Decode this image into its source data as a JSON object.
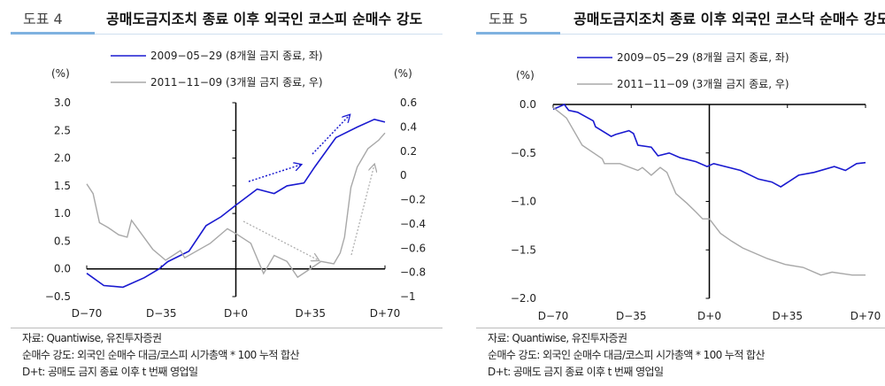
{
  "footnotes": [
    "자료: Quantiwise, 유진투자증권",
    "순매수 강도: 외국인 순매수 대금/코스피 시가총액 * 100 누적 합산",
    "D+t: 공매도 금지 종료 이후 t 번째 영업일"
  ],
  "chart_data": [
    {
      "type": "line",
      "figure_label": "도표 4",
      "title": "공매도금지조치 종료 이후 외국인 코스피 순매수 강도",
      "ylabel_left": "(%)",
      "ylabel_right": "(%)",
      "x_ticks": [
        "D−70",
        "D−35",
        "D+0",
        "D+35",
        "D+70"
      ],
      "xlim": [
        -70,
        70
      ],
      "y_left_ticks": [
        "3.0",
        "2.5",
        "2.0",
        "1.5",
        "1.0",
        "0.5",
        "0.0",
        "−0.5"
      ],
      "ylim_left": [
        -0.5,
        3.0
      ],
      "y_right_ticks": [
        "0.6",
        "0.4",
        "0.2",
        "0",
        "−0.2",
        "−0.4",
        "−0.6",
        "−0.8",
        "−1"
      ],
      "ylim_right": [
        -1,
        0.6
      ],
      "colors": {
        "s1": "#1a1ad0",
        "s2": "#a8a8a8"
      },
      "series": [
        {
          "name": "2009−05−29 (8개월 금지 종료, 좌)",
          "axis": "left",
          "x": [
            -70,
            -62,
            -53,
            -43,
            -36,
            -32,
            -22,
            -14,
            -7,
            0,
            10,
            18,
            24,
            32,
            37,
            47,
            57,
            65,
            70
          ],
          "y": [
            -0.08,
            -0.3,
            -0.33,
            -0.16,
            0,
            0.13,
            0.32,
            0.78,
            0.94,
            1.15,
            1.44,
            1.36,
            1.5,
            1.55,
            1.84,
            2.37,
            2.56,
            2.7,
            2.65
          ]
        },
        {
          "name": "2011−11−09 (3개월 금지 종료, 우)",
          "axis": "right",
          "x": [
            -70,
            -67,
            -64,
            -60,
            -55,
            -51,
            -49,
            -44,
            -39,
            -33,
            -26,
            -24,
            -12,
            -4,
            0,
            7,
            13,
            18,
            24,
            29,
            35,
            40,
            46,
            49,
            51,
            54,
            57,
            62,
            67,
            70
          ],
          "y": [
            -0.07,
            -0.15,
            -0.39,
            -0.43,
            -0.49,
            -0.51,
            -0.37,
            -0.49,
            -0.61,
            -0.7,
            -0.62,
            -0.68,
            -0.56,
            -0.44,
            -0.48,
            -0.56,
            -0.81,
            -0.66,
            -0.71,
            -0.84,
            -0.77,
            -0.71,
            -0.73,
            -0.64,
            -0.51,
            -0.1,
            0.07,
            0.22,
            0.29,
            0.35
          ]
        }
      ]
    },
    {
      "type": "line",
      "figure_label": "도표 5",
      "title": "공매도금지조치 종료 이후 외국인 코스닥 순매수 강도",
      "ylabel_left": "(%)",
      "x_ticks": [
        "D−70",
        "D−35",
        "D+0",
        "D+35",
        "D+70"
      ],
      "xlim": [
        -70,
        70
      ],
      "y_left_ticks": [
        "0.0",
        "−0.5",
        "−1.0",
        "−1.5",
        "−2.0"
      ],
      "ylim_left": [
        -2.0,
        0.0
      ],
      "colors": {
        "s1": "#1a1ad0",
        "s2": "#a8a8a8"
      },
      "series": [
        {
          "name": "2009−05−29 (8개월 금지 종료, 좌)",
          "axis": "left",
          "x": [
            -70,
            -65,
            -63,
            -59,
            -52,
            -51,
            -44,
            -42,
            -36,
            -34,
            -32,
            -26,
            -23,
            -18,
            -13,
            -6,
            -1,
            2,
            14,
            22,
            28,
            32,
            40,
            47,
            56,
            61,
            66,
            70
          ],
          "y": [
            -0.05,
            0,
            -0.06,
            -0.08,
            -0.17,
            -0.23,
            -0.33,
            -0.31,
            -0.27,
            -0.3,
            -0.42,
            -0.44,
            -0.53,
            -0.5,
            -0.55,
            -0.59,
            -0.64,
            -0.61,
            -0.68,
            -0.77,
            -0.8,
            -0.85,
            -0.73,
            -0.7,
            -0.64,
            -0.68,
            -0.61,
            -0.6
          ]
        },
        {
          "name": "2011−11−09 (3개월 금지 종료, 우)",
          "axis": "left",
          "x": [
            -70,
            -64,
            -57,
            -48,
            -47,
            -40,
            -32,
            -30,
            -26,
            -22,
            -19,
            -15,
            -10,
            -6,
            -3,
            0,
            5,
            10,
            15,
            26,
            34,
            42,
            50,
            55,
            64,
            70
          ],
          "y": [
            -0.03,
            -0.14,
            -0.42,
            -0.56,
            -0.61,
            -0.61,
            -0.68,
            -0.65,
            -0.73,
            -0.65,
            -0.7,
            -0.92,
            -1.02,
            -1.11,
            -1.18,
            -1.18,
            -1.33,
            -1.41,
            -1.48,
            -1.59,
            -1.65,
            -1.68,
            -1.76,
            -1.73,
            -1.76,
            -1.76
          ]
        }
      ]
    }
  ]
}
